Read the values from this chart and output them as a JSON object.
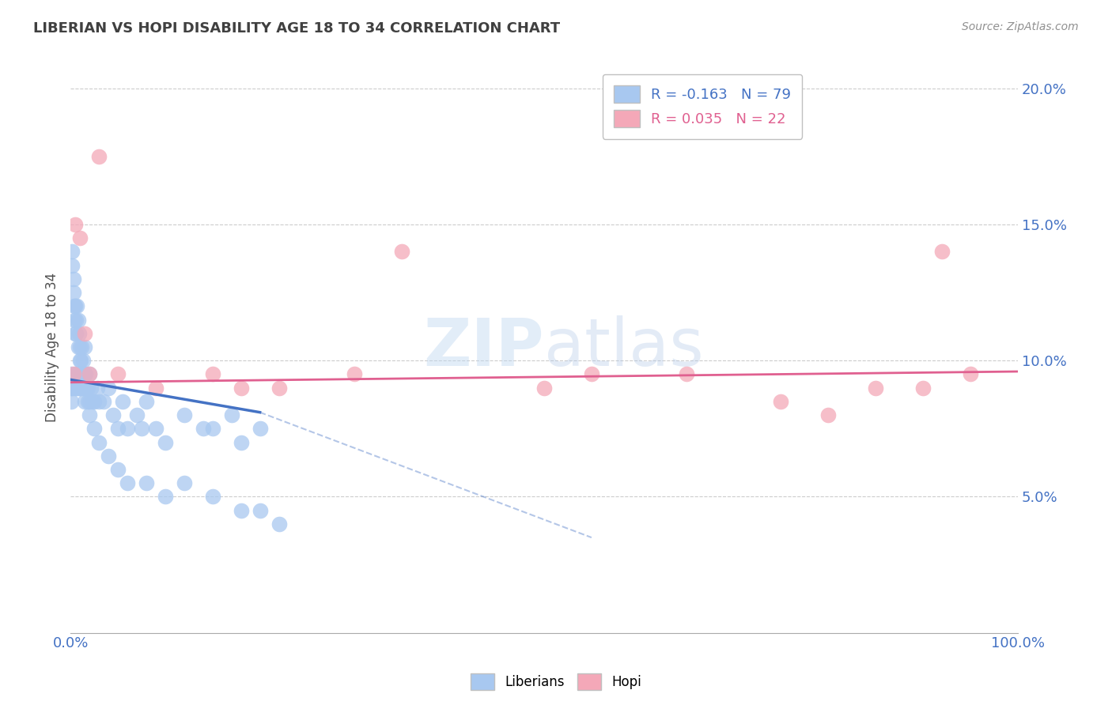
{
  "title": "LIBERIAN VS HOPI DISABILITY AGE 18 TO 34 CORRELATION CHART",
  "source": "Source: ZipAtlas.com",
  "ylabel": "Disability Age 18 to 34",
  "xlim": [
    0,
    100
  ],
  "ylim": [
    0,
    21
  ],
  "yticks": [
    5,
    10,
    15,
    20
  ],
  "ytick_labels": [
    "5.0%",
    "10.0%",
    "15.0%",
    "20.0%"
  ],
  "legend_liberian_R": "-0.163",
  "legend_liberian_N": "79",
  "legend_hopi_R": "0.035",
  "legend_hopi_N": "22",
  "liberian_color": "#a8c8f0",
  "hopi_color": "#f4a8b8",
  "liberian_line_color": "#4472c4",
  "hopi_line_color": "#e06090",
  "title_color": "#404040",
  "source_color": "#909090",
  "axis_label_color": "#4472c4",
  "liberian_x": [
    0.1,
    0.1,
    0.1,
    0.2,
    0.2,
    0.2,
    0.3,
    0.3,
    0.4,
    0.4,
    0.5,
    0.5,
    0.5,
    0.6,
    0.6,
    0.6,
    0.7,
    0.7,
    0.8,
    0.8,
    0.8,
    0.9,
    0.9,
    1.0,
    1.0,
    1.0,
    1.1,
    1.1,
    1.2,
    1.2,
    1.3,
    1.3,
    1.4,
    1.5,
    1.5,
    1.5,
    1.6,
    1.7,
    1.8,
    1.8,
    2.0,
    2.0,
    2.2,
    2.3,
    2.5,
    2.8,
    3.0,
    3.5,
    4.0,
    4.5,
    5.0,
    5.5,
    6.0,
    7.0,
    7.5,
    8.0,
    9.0,
    10.0,
    12.0,
    14.0,
    15.0,
    17.0,
    18.0,
    20.0,
    1.0,
    1.5,
    2.0,
    2.5,
    3.0,
    4.0,
    5.0,
    6.0,
    8.0,
    10.0,
    12.0,
    15.0,
    18.0,
    20.0,
    22.0
  ],
  "liberian_y": [
    9.5,
    9.0,
    8.5,
    14.0,
    13.5,
    9.0,
    13.0,
    12.5,
    12.0,
    11.5,
    12.0,
    11.0,
    9.0,
    11.5,
    11.0,
    9.5,
    12.0,
    9.0,
    11.5,
    10.5,
    9.5,
    11.0,
    9.0,
    10.5,
    10.0,
    9.5,
    10.0,
    9.0,
    10.5,
    9.5,
    10.0,
    9.0,
    9.5,
    10.5,
    9.5,
    9.0,
    9.5,
    9.0,
    9.0,
    8.5,
    9.5,
    8.5,
    9.0,
    8.5,
    8.5,
    9.0,
    8.5,
    8.5,
    9.0,
    8.0,
    7.5,
    8.5,
    7.5,
    8.0,
    7.5,
    8.5,
    7.5,
    7.0,
    8.0,
    7.5,
    7.5,
    8.0,
    7.0,
    7.5,
    9.0,
    8.5,
    8.0,
    7.5,
    7.0,
    6.5,
    6.0,
    5.5,
    5.5,
    5.0,
    5.5,
    5.0,
    4.5,
    4.5,
    4.0
  ],
  "hopi_x": [
    0.3,
    0.5,
    1.0,
    1.5,
    2.0,
    3.0,
    5.0,
    9.0,
    15.0,
    18.0,
    22.0,
    30.0,
    35.0,
    50.0,
    55.0,
    65.0,
    75.0,
    80.0,
    85.0,
    90.0,
    92.0,
    95.0
  ],
  "hopi_y": [
    9.5,
    15.0,
    14.5,
    11.0,
    9.5,
    17.5,
    9.5,
    9.0,
    9.5,
    9.0,
    9.0,
    9.5,
    14.0,
    9.0,
    9.5,
    9.5,
    8.5,
    8.0,
    9.0,
    9.0,
    14.0,
    9.5
  ],
  "lib_line_x0": 0,
  "lib_line_y0": 9.3,
  "lib_line_x1": 20,
  "lib_line_y1": 8.1,
  "lib_dash_x0": 20,
  "lib_dash_y0": 8.1,
  "lib_dash_x1": 55,
  "lib_dash_y1": 3.5,
  "hopi_line_x0": 0,
  "hopi_line_y0": 9.2,
  "hopi_line_x1": 100,
  "hopi_line_y1": 9.6
}
